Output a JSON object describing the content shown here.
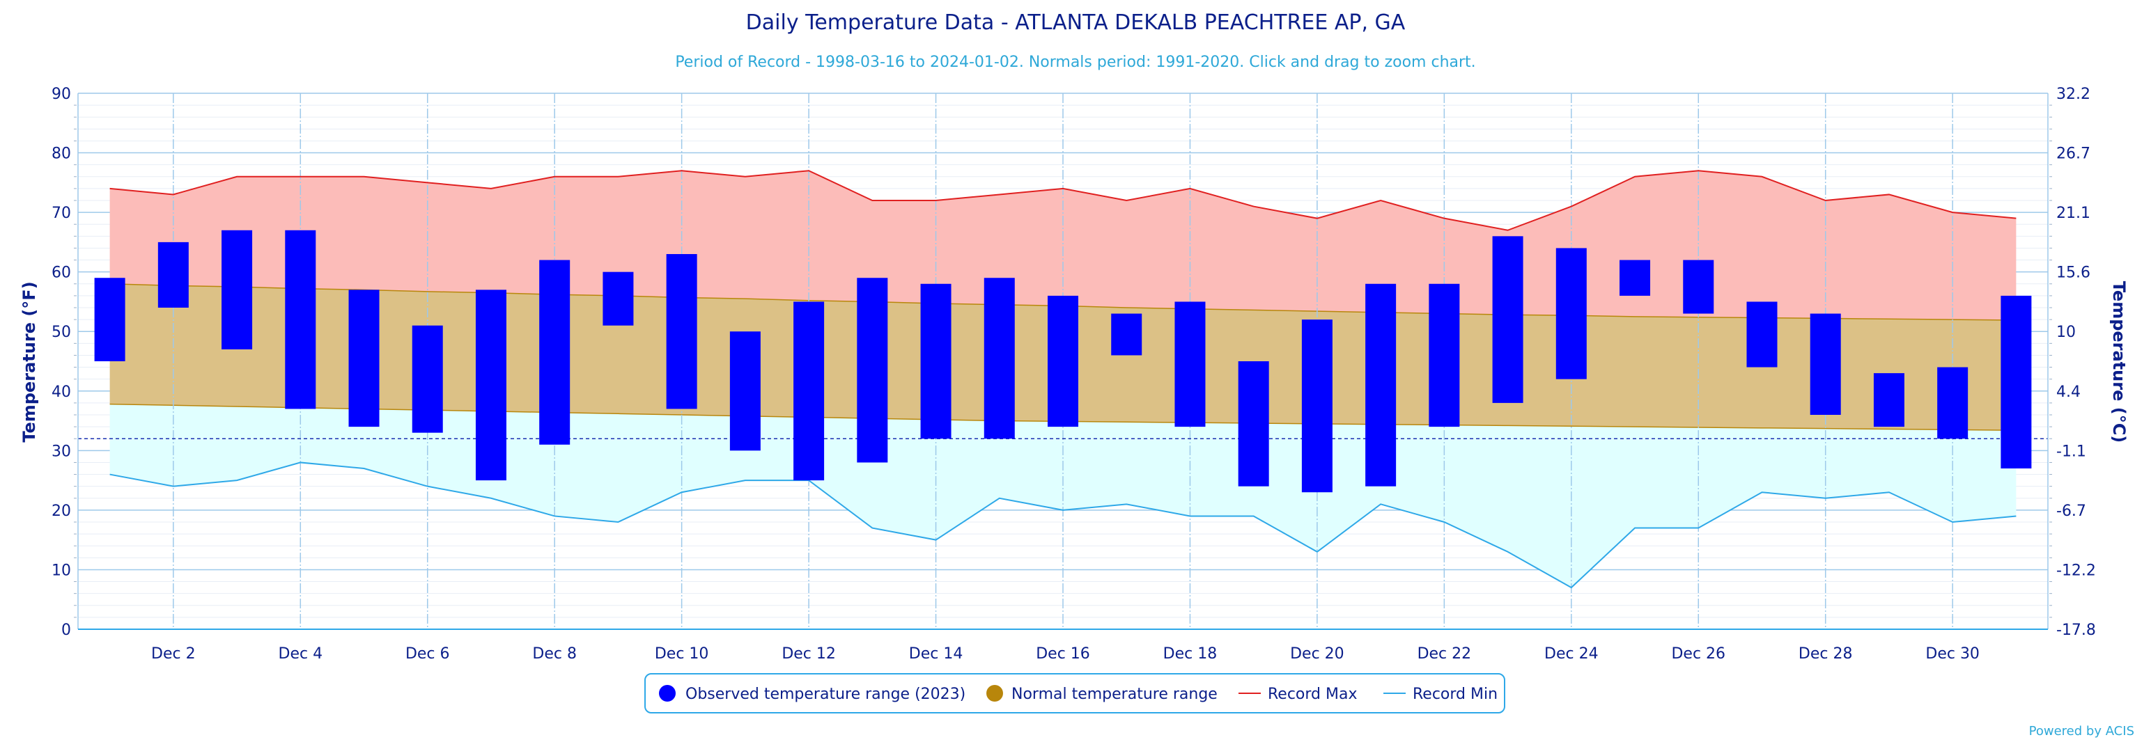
{
  "chart_data": {
    "type": "bar",
    "title": "Daily Temperature Data - ATLANTA DEKALB PEACHTREE AP, GA",
    "subtitle": "Period of Record - 1998-03-16 to 2024-01-02. Normals period: 1991-2020. Click and drag to zoom chart.",
    "credit": "Powered by ACIS",
    "ylabel_left": "Temperature (°F)",
    "ylabel_right": "Temperature (°C)",
    "ylim": [
      0,
      90
    ],
    "y_ticks_left": [
      "0",
      "10",
      "20",
      "30",
      "40",
      "50",
      "60",
      "70",
      "80",
      "90"
    ],
    "y_ticks_right": [
      "-17.8",
      "-12.2",
      "-6.7",
      "-1.1",
      "4.4",
      "10",
      "15.6",
      "21.1",
      "26.7",
      "32.2"
    ],
    "freezing_line": 32,
    "days": [
      1,
      2,
      3,
      4,
      5,
      6,
      7,
      8,
      9,
      10,
      11,
      12,
      13,
      14,
      15,
      16,
      17,
      18,
      19,
      20,
      21,
      22,
      23,
      24,
      25,
      26,
      27,
      28,
      29,
      30,
      31
    ],
    "x_tick_labels": [
      "Dec 2",
      "Dec 4",
      "Dec 6",
      "Dec 8",
      "Dec 10",
      "Dec 12",
      "Dec 14",
      "Dec 16",
      "Dec 18",
      "Dec 20",
      "Dec 22",
      "Dec 24",
      "Dec 26",
      "Dec 28",
      "Dec 30"
    ],
    "x_tick_days": [
      2,
      4,
      6,
      8,
      10,
      12,
      14,
      16,
      18,
      20,
      22,
      24,
      26,
      28,
      30
    ],
    "observed_high": [
      59,
      65,
      67,
      67,
      57,
      51,
      57,
      62,
      60,
      63,
      50,
      55,
      59,
      58,
      59,
      56,
      53,
      55,
      45,
      52,
      58,
      58,
      66,
      64,
      62,
      62,
      55,
      53,
      43,
      44,
      56
    ],
    "observed_low": [
      45,
      54,
      47,
      37,
      34,
      33,
      25,
      31,
      51,
      37,
      30,
      25,
      28,
      32,
      32,
      34,
      46,
      34,
      24,
      23,
      24,
      34,
      38,
      42,
      56,
      53,
      44,
      36,
      34,
      32,
      27
    ],
    "normal_high": [
      58.0,
      57.7,
      57.5,
      57.2,
      57.0,
      56.7,
      56.5,
      56.2,
      56.0,
      55.7,
      55.5,
      55.2,
      55.0,
      54.7,
      54.5,
      54.3,
      54.0,
      53.8,
      53.6,
      53.4,
      53.2,
      53.0,
      52.8,
      52.7,
      52.5,
      52.4,
      52.3,
      52.2,
      52.1,
      52.0,
      51.9
    ],
    "normal_low": [
      37.8,
      37.6,
      37.4,
      37.2,
      37.0,
      36.8,
      36.6,
      36.4,
      36.2,
      36.0,
      35.8,
      35.6,
      35.4,
      35.2,
      35.0,
      34.9,
      34.8,
      34.7,
      34.6,
      34.5,
      34.4,
      34.3,
      34.2,
      34.1,
      34.0,
      33.9,
      33.8,
      33.7,
      33.6,
      33.5,
      33.4
    ],
    "record_max": [
      74,
      73,
      76,
      76,
      76,
      75,
      74,
      76,
      76,
      77,
      76,
      77,
      72,
      72,
      73,
      74,
      72,
      74,
      71,
      69,
      72,
      69,
      67,
      71,
      76,
      77,
      76,
      72,
      73,
      70,
      69
    ],
    "record_min": [
      26,
      24,
      25,
      28,
      27,
      24,
      22,
      19,
      18,
      23,
      25,
      25,
      17,
      15,
      22,
      20,
      21,
      19,
      19,
      13,
      21,
      18,
      13,
      7,
      17,
      17,
      23,
      22,
      23,
      18,
      19
    ],
    "series": [
      {
        "name": "Observed temperature range (2023)",
        "color": "#0000ff"
      },
      {
        "name": "Normal temperature range",
        "color": "#b8860b"
      },
      {
        "name": "Record Max",
        "color": "#e02020"
      },
      {
        "name": "Record Min",
        "color": "#2ea8e8"
      }
    ],
    "legend_position": "bottom-center",
    "grid": true
  }
}
